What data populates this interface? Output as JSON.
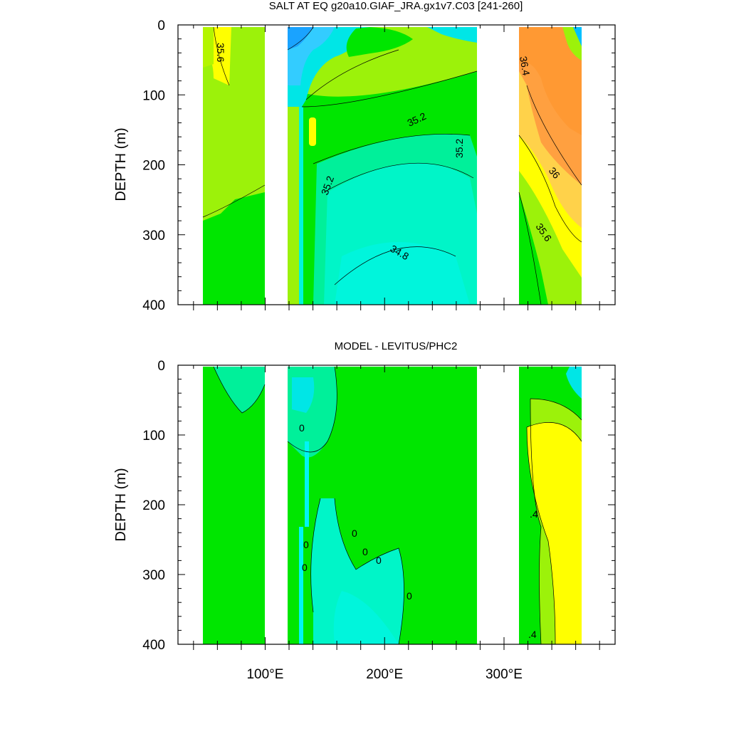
{
  "chart_data": [
    {
      "type": "contour",
      "title": "SALT AT EQ g20a10.GIAF_JRA.gx1v7.C03 [241-260]",
      "ylabel": "DEPTH (m)",
      "xlabel": "",
      "xlim": [
        27,
        393
      ],
      "ylim": [
        400,
        0
      ],
      "x_ticks": [
        100,
        200,
        300
      ],
      "x_tick_labels": [
        "100°E",
        "200°E",
        "300°E"
      ],
      "y_ticks": [
        0,
        100,
        200,
        300,
        400
      ],
      "y_tick_labels": [
        "0",
        "100",
        "200",
        "300",
        "400"
      ],
      "contour_labels": [
        {
          "text": "35.6",
          "lon": 46,
          "depth": 25
        },
        {
          "text": "36.4",
          "lon": 325,
          "depth": 45
        },
        {
          "text": "35.2",
          "lon": 226,
          "depth": 140
        },
        {
          "text": "35.2",
          "lon": 274,
          "depth": 175
        },
        {
          "text": "36",
          "lon": 335,
          "depth": 210
        },
        {
          "text": "35.2",
          "lon": 153,
          "depth": 230
        },
        {
          "text": "35.6",
          "lon": 332,
          "depth": 300
        },
        {
          "text": "34.8",
          "lon": 226,
          "depth": 330
        }
      ]
    },
    {
      "type": "contour",
      "title": "MODEL - LEVITUS/PHC2",
      "ylabel": "DEPTH (m)",
      "xlabel": "",
      "xlim": [
        27,
        393
      ],
      "ylim": [
        400,
        0
      ],
      "x_ticks": [
        100,
        200,
        300
      ],
      "x_tick_labels": [
        "100°E",
        "200°E",
        "300°E"
      ],
      "y_ticks": [
        0,
        100,
        200,
        300,
        400
      ],
      "y_tick_labels": [
        "0",
        "100",
        "200",
        "300",
        "400"
      ],
      "contour_labels": [
        {
          "text": "0",
          "lon": 134,
          "depth": 95
        },
        {
          "text": "0",
          "lon": 138,
          "depth": 255
        },
        {
          "text": "0",
          "lon": 175,
          "depth": 240
        },
        {
          "text": "0",
          "lon": 185,
          "depth": 265
        },
        {
          "text": "0",
          "lon": 196,
          "depth": 275
        },
        {
          "text": "0",
          "lon": 136,
          "depth": 285
        },
        {
          "text": "0",
          "lon": 223,
          "depth": 330
        },
        {
          "text": ".4",
          "lon": 323,
          "depth": 215
        },
        {
          "text": ".4",
          "lon": 325,
          "depth": 385
        }
      ]
    }
  ]
}
